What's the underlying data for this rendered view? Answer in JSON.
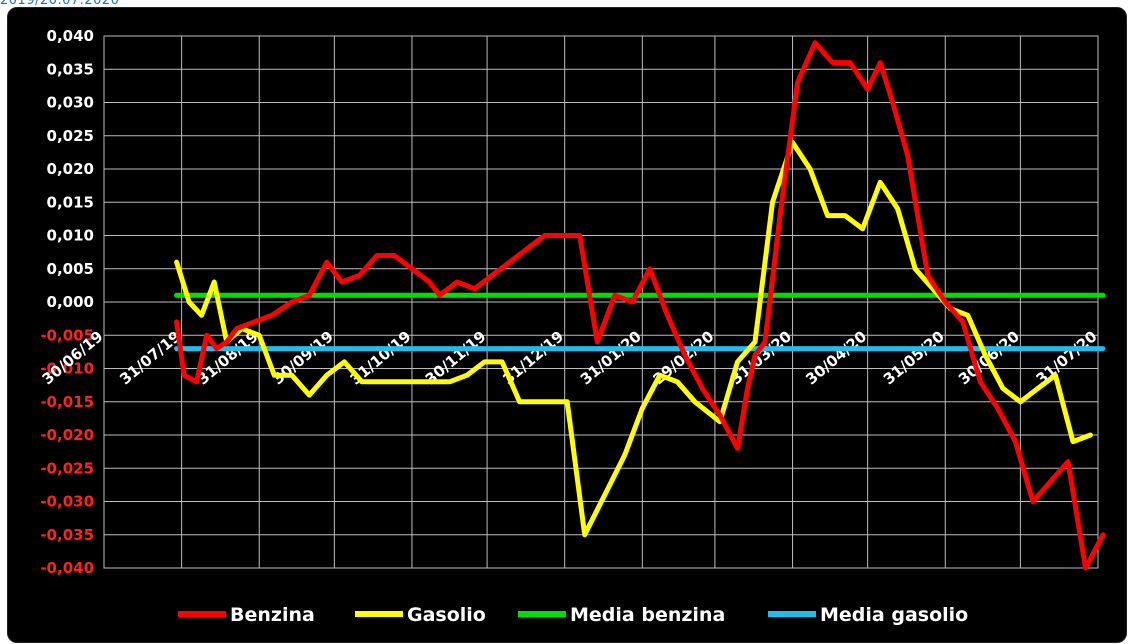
{
  "caption": "2019/20.07.2020",
  "colors": {
    "background": "#000000",
    "grid": "#bdbdbd",
    "positive_tick": "#ffffff",
    "negative_tick": "#ff2222",
    "benzina": "#ff0000",
    "gasolio": "#ffff00",
    "media_benzina": "#00e000",
    "media_gasolio": "#22bbee"
  },
  "chart_data": {
    "type": "line",
    "title": "",
    "xlabel": "",
    "ylabel": "",
    "ylim": [
      -0.04,
      0.04
    ],
    "ytick_step": 0.005,
    "grid": true,
    "legend_position": "bottom",
    "x_ticks": [
      "30/06/19",
      "31/07/19",
      "31/08/19",
      "30/09/19",
      "31/10/19",
      "30/11/19",
      "31/12/19",
      "31/01/20",
      "29/02/20",
      "31/03/20",
      "30/04/20",
      "31/05/20",
      "30/06/20",
      "31/07/20"
    ],
    "y_tick_labels": [
      "0,040",
      "0,035",
      "0,030",
      "0,025",
      "0,020",
      "0,015",
      "0,010",
      "0,005",
      "0,000",
      "-0,005",
      "-0,010",
      "-0,015",
      "-0,020",
      "-0,025",
      "-0,030",
      "-0,035",
      "-0,040"
    ],
    "series": [
      {
        "name": "Benzina",
        "color": "#ff0000",
        "points": [
          [
            "2019-07-29",
            -0.003
          ],
          [
            "2019-08-01",
            -0.011
          ],
          [
            "2019-08-06",
            -0.012
          ],
          [
            "2019-08-10",
            -0.005
          ],
          [
            "2019-08-14",
            -0.007
          ],
          [
            "2019-08-18",
            -0.006
          ],
          [
            "2019-08-22",
            -0.004
          ],
          [
            "2019-08-29",
            -0.003
          ],
          [
            "2019-09-05",
            -0.002
          ],
          [
            "2019-09-13",
            0.0
          ],
          [
            "2019-09-20",
            0.001
          ],
          [
            "2019-09-27",
            0.006
          ],
          [
            "2019-10-03",
            0.003
          ],
          [
            "2019-10-10",
            0.004
          ],
          [
            "2019-10-17",
            0.007
          ],
          [
            "2019-10-24",
            0.007
          ],
          [
            "2019-10-31",
            0.005
          ],
          [
            "2019-11-07",
            0.003
          ],
          [
            "2019-11-11",
            0.001
          ],
          [
            "2019-11-18",
            0.003
          ],
          [
            "2019-11-25",
            0.002
          ],
          [
            "2019-12-02",
            0.004
          ],
          [
            "2019-12-09",
            0.006
          ],
          [
            "2019-12-16",
            0.008
          ],
          [
            "2019-12-23",
            0.01
          ],
          [
            "2019-12-30",
            0.01
          ],
          [
            "2020-01-06",
            0.01
          ],
          [
            "2020-01-13",
            -0.006
          ],
          [
            "2020-01-20",
            0.001
          ],
          [
            "2020-01-27",
            0.0
          ],
          [
            "2020-02-03",
            0.005
          ],
          [
            "2020-02-10",
            -0.002
          ],
          [
            "2020-02-17",
            -0.008
          ],
          [
            "2020-02-24",
            -0.013
          ],
          [
            "2020-03-02",
            -0.017
          ],
          [
            "2020-03-09",
            -0.022
          ],
          [
            "2020-03-13",
            -0.013
          ],
          [
            "2020-03-16",
            -0.008
          ],
          [
            "2020-03-20",
            -0.006
          ],
          [
            "2020-03-26",
            0.013
          ],
          [
            "2020-04-02",
            0.033
          ],
          [
            "2020-04-09",
            0.039
          ],
          [
            "2020-04-16",
            0.036
          ],
          [
            "2020-04-23",
            0.036
          ],
          [
            "2020-04-30",
            0.032
          ],
          [
            "2020-05-05",
            0.036
          ],
          [
            "2020-05-10",
            0.03
          ],
          [
            "2020-05-16",
            0.022
          ],
          [
            "2020-05-24",
            0.004
          ],
          [
            "2020-05-31",
            0.0
          ],
          [
            "2020-06-07",
            -0.003
          ],
          [
            "2020-06-14",
            -0.012
          ],
          [
            "2020-06-21",
            -0.016
          ],
          [
            "2020-06-28",
            -0.021
          ],
          [
            "2020-07-05",
            -0.03
          ],
          [
            "2020-07-12",
            -0.027
          ],
          [
            "2020-07-19",
            -0.024
          ],
          [
            "2020-07-26",
            -0.04
          ],
          [
            "2020-08-02",
            -0.035
          ]
        ]
      },
      {
        "name": "Gasolio",
        "color": "#ffff00",
        "points": [
          [
            "2019-07-29",
            0.006
          ],
          [
            "2019-08-03",
            0.0
          ],
          [
            "2019-08-08",
            -0.002
          ],
          [
            "2019-08-13",
            0.003
          ],
          [
            "2019-08-18",
            -0.006
          ],
          [
            "2019-08-24",
            -0.004
          ],
          [
            "2019-08-31",
            -0.005
          ],
          [
            "2019-09-06",
            -0.011
          ],
          [
            "2019-09-13",
            -0.011
          ],
          [
            "2019-09-20",
            -0.014
          ],
          [
            "2019-09-27",
            -0.011
          ],
          [
            "2019-10-04",
            -0.009
          ],
          [
            "2019-10-11",
            -0.012
          ],
          [
            "2019-10-18",
            -0.012
          ],
          [
            "2019-10-25",
            -0.012
          ],
          [
            "2019-11-01",
            -0.012
          ],
          [
            "2019-11-08",
            -0.012
          ],
          [
            "2019-11-15",
            -0.012
          ],
          [
            "2019-11-22",
            -0.011
          ],
          [
            "2019-11-29",
            -0.009
          ],
          [
            "2019-12-06",
            -0.009
          ],
          [
            "2019-12-13",
            -0.015
          ],
          [
            "2019-12-20",
            -0.015
          ],
          [
            "2020-01-01",
            -0.015
          ],
          [
            "2020-01-08",
            -0.035
          ],
          [
            "2020-01-16",
            -0.029
          ],
          [
            "2020-01-24",
            -0.023
          ],
          [
            "2020-01-31",
            -0.016
          ],
          [
            "2020-02-07",
            -0.011
          ],
          [
            "2020-02-14",
            -0.012
          ],
          [
            "2020-02-21",
            -0.015
          ],
          [
            "2020-03-02",
            -0.018
          ],
          [
            "2020-03-09",
            -0.009
          ],
          [
            "2020-03-16",
            -0.006
          ],
          [
            "2020-03-23",
            0.015
          ],
          [
            "2020-03-31",
            0.024
          ],
          [
            "2020-04-07",
            0.02
          ],
          [
            "2020-04-14",
            0.013
          ],
          [
            "2020-04-21",
            0.013
          ],
          [
            "2020-04-28",
            0.011
          ],
          [
            "2020-05-05",
            0.018
          ],
          [
            "2020-05-12",
            0.014
          ],
          [
            "2020-05-19",
            0.005
          ],
          [
            "2020-05-26",
            0.002
          ],
          [
            "2020-06-02",
            -0.001
          ],
          [
            "2020-06-09",
            -0.002
          ],
          [
            "2020-06-16",
            -0.008
          ],
          [
            "2020-06-23",
            -0.013
          ],
          [
            "2020-06-30",
            -0.015
          ],
          [
            "2020-07-07",
            -0.013
          ],
          [
            "2020-07-14",
            -0.011
          ],
          [
            "2020-07-21",
            -0.021
          ],
          [
            "2020-07-28",
            -0.02
          ]
        ]
      },
      {
        "name": "Media benzina",
        "color": "#00e000",
        "points": [
          [
            "2019-07-29",
            0.001
          ],
          [
            "2020-08-02",
            0.001
          ]
        ]
      },
      {
        "name": "Media gasolio",
        "color": "#22bbee",
        "points": [
          [
            "2019-07-29",
            -0.007
          ],
          [
            "2020-08-02",
            -0.007
          ]
        ]
      }
    ]
  }
}
